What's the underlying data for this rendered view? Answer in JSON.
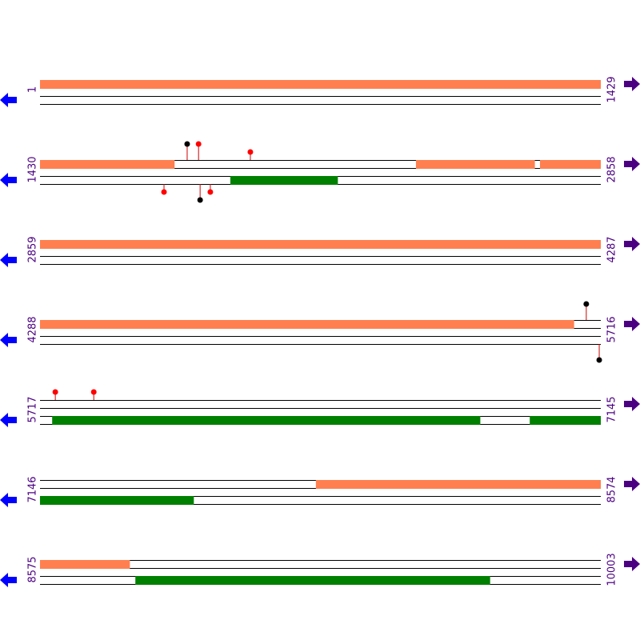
{
  "rows": [
    {
      "start": 1,
      "end": 1429,
      "features": [
        {
          "strand": "forward",
          "start": 1,
          "end": 1429,
          "color": "#ff7f50"
        }
      ],
      "sites": []
    },
    {
      "start": 1430,
      "end": 2858,
      "features": [
        {
          "strand": "forward",
          "start": 1430,
          "end": 1772,
          "color": "#ff7f50"
        },
        {
          "strand": "forward",
          "start": 2388,
          "end": 2690,
          "color": "#ff7f50"
        },
        {
          "strand": "forward",
          "start": 2704,
          "end": 2858,
          "color": "#ff7f50"
        },
        {
          "strand": "reverse",
          "start": 1915,
          "end": 2188,
          "color": "#008000"
        }
      ],
      "sites": [
        {
          "strand": "forward",
          "position": 1805,
          "color": "black",
          "level": 2
        },
        {
          "strand": "forward",
          "position": 1834,
          "color": "red",
          "level": 2
        },
        {
          "strand": "forward",
          "position": 1966,
          "color": "red",
          "level": 1
        },
        {
          "strand": "reverse",
          "position": 1746,
          "color": "red",
          "level": 1
        },
        {
          "strand": "reverse",
          "position": 1838,
          "color": "black",
          "level": 2
        },
        {
          "strand": "reverse",
          "position": 1864,
          "color": "red",
          "level": 1
        }
      ]
    },
    {
      "start": 2859,
      "end": 4287,
      "features": [
        {
          "strand": "forward",
          "start": 2859,
          "end": 4287,
          "color": "#ff7f50"
        }
      ],
      "sites": []
    },
    {
      "start": 4288,
      "end": 5716,
      "features": [
        {
          "strand": "forward",
          "start": 4288,
          "end": 5648,
          "color": "#ff7f50"
        }
      ],
      "sites": [
        {
          "strand": "forward",
          "position": 5680,
          "color": "black",
          "level": 2
        },
        {
          "strand": "reverse",
          "position": 5713,
          "color": "black",
          "level": 2
        }
      ]
    },
    {
      "start": 5717,
      "end": 7145,
      "features": [
        {
          "strand": "reverse",
          "start": 5748,
          "end": 6838,
          "color": "#008000"
        },
        {
          "strand": "reverse",
          "start": 6965,
          "end": 7145,
          "color": "#008000"
        }
      ],
      "sites": [
        {
          "strand": "forward",
          "position": 5756,
          "color": "red",
          "level": 1
        },
        {
          "strand": "forward",
          "position": 5854,
          "color": "red",
          "level": 1
        }
      ]
    },
    {
      "start": 7146,
      "end": 8574,
      "features": [
        {
          "strand": "forward",
          "start": 7849,
          "end": 8574,
          "color": "#ff7f50"
        },
        {
          "strand": "reverse",
          "start": 7146,
          "end": 7537,
          "color": "#008000"
        }
      ],
      "sites": []
    },
    {
      "start": 8575,
      "end": 10003,
      "features": [
        {
          "strand": "forward",
          "start": 8575,
          "end": 8803,
          "color": "#ff7f50"
        },
        {
          "strand": "reverse",
          "start": 8818,
          "end": 9721,
          "color": "#008000"
        }
      ],
      "sites": []
    }
  ]
}
